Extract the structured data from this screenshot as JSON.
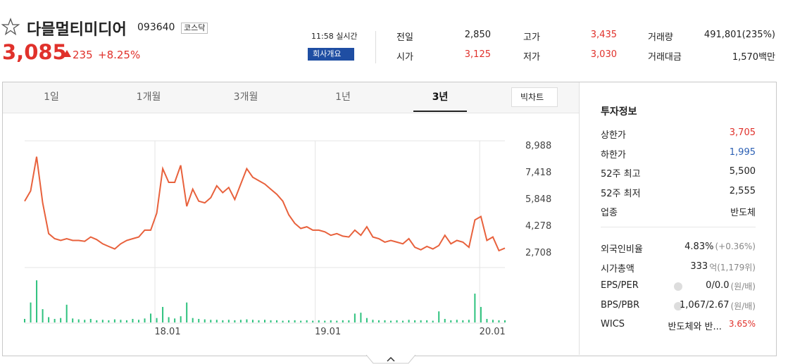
{
  "header": {
    "name": "다믈멀티미디어",
    "code": "093640",
    "market": "코스닥",
    "price": "3,085",
    "change": "235",
    "change_pct": "+8.25%",
    "time": "11:58 실시간",
    "company_button": "회사개요"
  },
  "summary": [
    {
      "label": "전일",
      "value": "2,850",
      "color": "#222222"
    },
    {
      "label": "시가",
      "value": "3,125",
      "color": "#e0312b"
    },
    {
      "label": "고가",
      "value": "3,435",
      "color": "#e0312b"
    },
    {
      "label": "저가",
      "value": "3,030",
      "color": "#e0312b"
    },
    {
      "label": "거래량",
      "value": "491,801(235%)",
      "color": "#222222"
    },
    {
      "label": "거래대금",
      "value": "1,570백만",
      "color": "#222222"
    }
  ],
  "tabs": [
    "1일",
    "1개월",
    "3개월",
    "1년",
    "3년"
  ],
  "active_tab": 4,
  "big_chart_button": "빅차트",
  "chart": {
    "type": "line",
    "color": "#e8613c",
    "volume_color": "#2ec27e",
    "ylim": [
      1811,
      9233
    ],
    "yticks": [
      {
        "value": 8988,
        "label": "8,988"
      },
      {
        "value": 7418,
        "label": "7,418"
      },
      {
        "value": 5848,
        "label": "5,848"
      },
      {
        "value": 4278,
        "label": "4,278"
      },
      {
        "value": 2708,
        "label": "2,708"
      }
    ],
    "xlim": [
      0,
      80
    ],
    "xticks": [
      {
        "value": 21.7,
        "label": "18.01"
      },
      {
        "value": 48.4,
        "label": "19.01"
      },
      {
        "value": 75.8,
        "label": "20.01"
      }
    ],
    "values": [
      5700,
      6300,
      8300,
      5600,
      3800,
      3500,
      3400,
      3500,
      3400,
      3400,
      3350,
      3600,
      3450,
      3200,
      3050,
      2900,
      3200,
      3400,
      3500,
      3600,
      4000,
      4000,
      5000,
      7600,
      6800,
      6800,
      7800,
      5400,
      6400,
      5700,
      5600,
      5900,
      6600,
      6200,
      6500,
      5800,
      6700,
      7600,
      7100,
      6900,
      6700,
      6400,
      6100,
      5700,
      4900,
      4400,
      4100,
      4200,
      4000,
      4000,
      3900,
      3700,
      3800,
      3650,
      3600,
      4000,
      3700,
      4200,
      3600,
      3500,
      3300,
      3400,
      3300,
      3200,
      3500,
      3000,
      2850,
      3050,
      2900,
      3100,
      3700,
      3200,
      3400,
      3300,
      3000,
      4600,
      4800,
      3400,
      3600,
      2800,
      2950
    ],
    "volume_lim": [
      0,
      100
    ],
    "volume": [
      8,
      45,
      95,
      30,
      12,
      8,
      10,
      40,
      9,
      7,
      6,
      8,
      5,
      6,
      5,
      7,
      6,
      5,
      8,
      6,
      9,
      20,
      10,
      35,
      12,
      9,
      14,
      45,
      10,
      8,
      7,
      6,
      6,
      5,
      6,
      5,
      6,
      7,
      6,
      5,
      6,
      5,
      5,
      4,
      5,
      5,
      4,
      5,
      4,
      5,
      4,
      5,
      4,
      5,
      5,
      20,
      22,
      10,
      6,
      5,
      5,
      4,
      5,
      4,
      6,
      5,
      5,
      5,
      4,
      25,
      8,
      5,
      6,
      5,
      6,
      65,
      35,
      8,
      6,
      5,
      5
    ]
  },
  "invest_info": {
    "title": "투자정보",
    "items": [
      {
        "label": "상한가",
        "value": "3,705",
        "color": "#e0312b"
      },
      {
        "label": "하한가",
        "value": "1,995",
        "color": "#2b5fb3"
      },
      {
        "label": "52주 최고",
        "value": "5,500",
        "color": "#222222"
      },
      {
        "label": "52주 최저",
        "value": "2,555",
        "color": "#222222"
      },
      {
        "label": "업종",
        "value": "반도체",
        "color": "#222222"
      }
    ],
    "items2": [
      {
        "label": "외국인비율",
        "value": "4.83%",
        "sub": "(+0.36%)",
        "color": "#222222"
      },
      {
        "label": "시가총액",
        "value": "333",
        "sub": "억(1,179위)",
        "color": "#222222"
      },
      {
        "label": "EPS/PER",
        "value": "0/0.0",
        "sub": "(원/배)",
        "color": "#222222",
        "help": true
      },
      {
        "label": "BPS/PBR",
        "value": "1,067/2.67",
        "sub": "(원/배)",
        "color": "#222222",
        "help": true
      },
      {
        "label": "WICS",
        "value": "반도체와 반...",
        "sub": "3.65%",
        "color": "#222222",
        "sub_color": "#e0312b"
      }
    ]
  }
}
